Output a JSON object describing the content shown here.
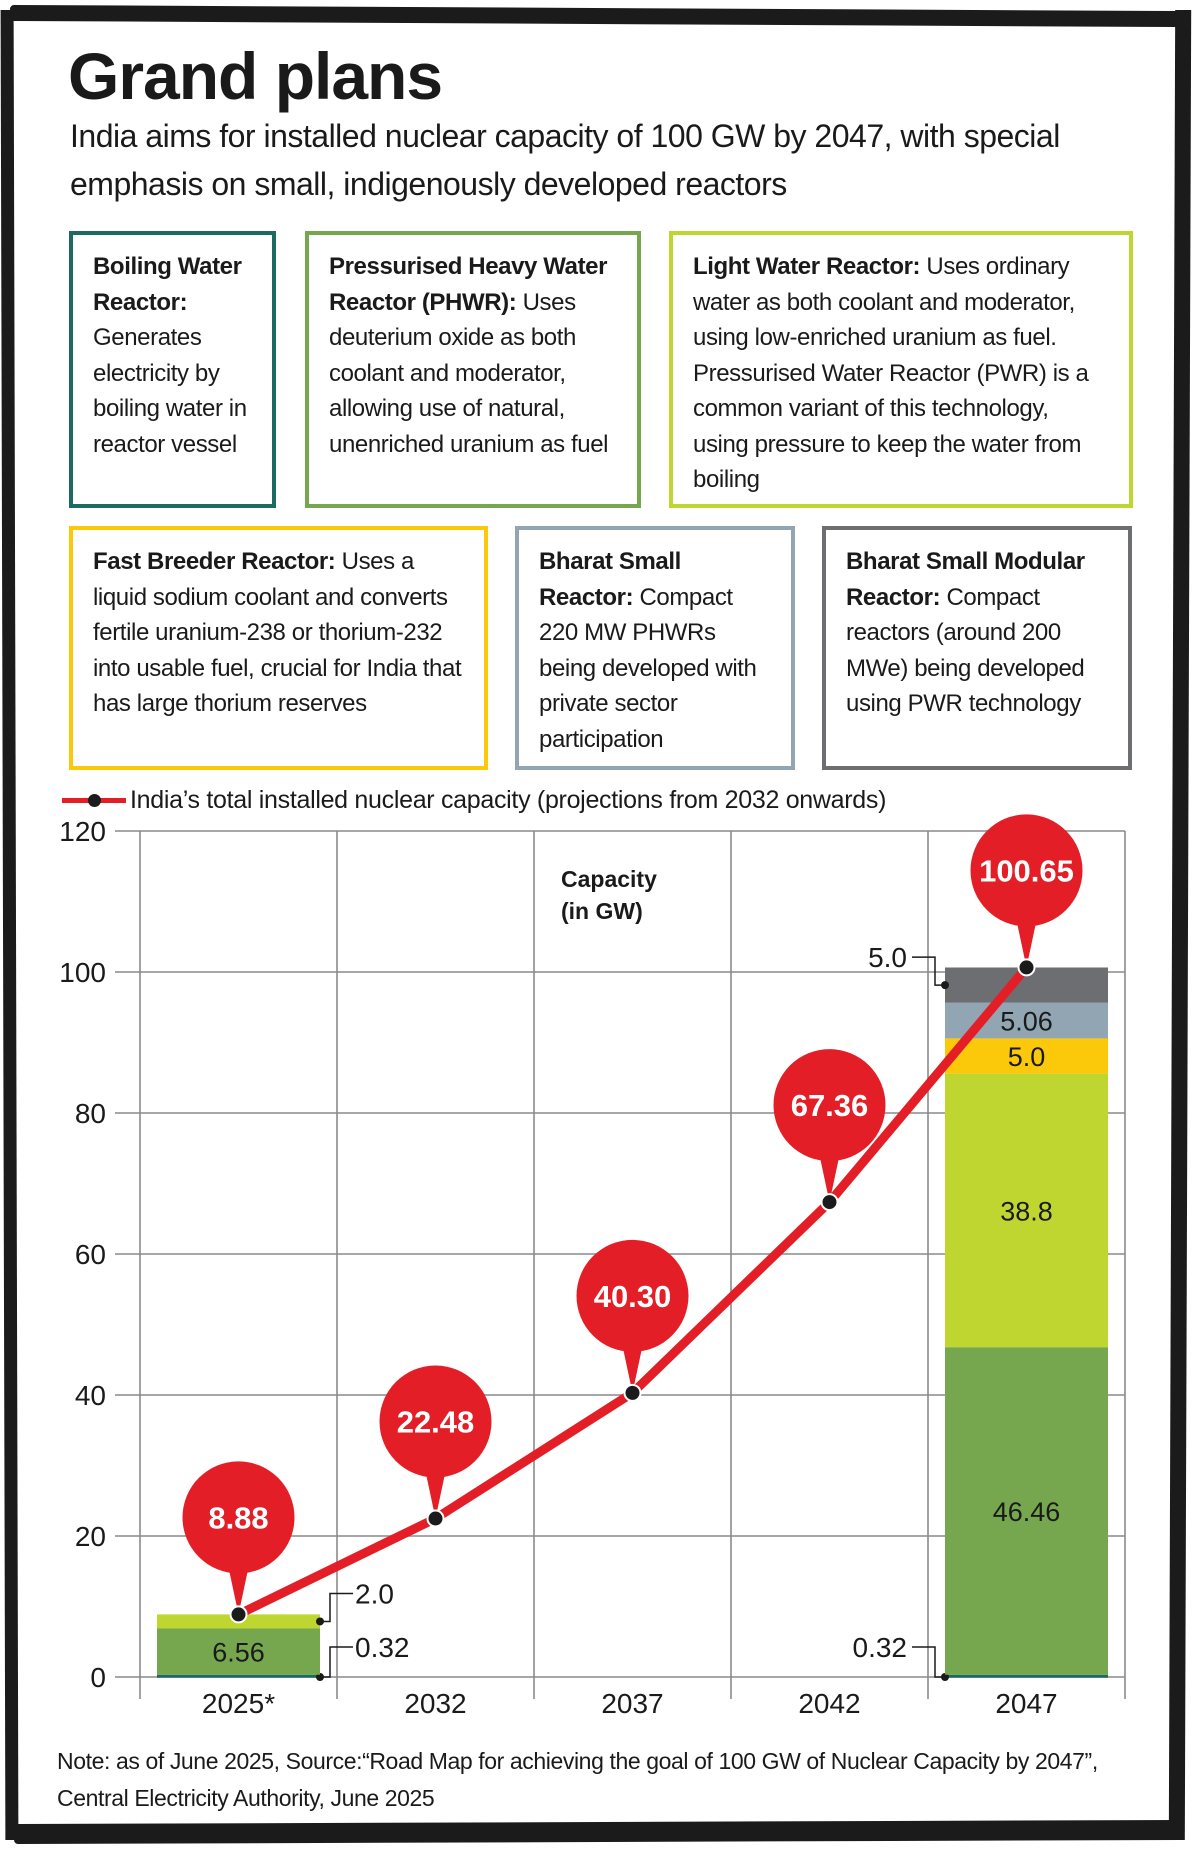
{
  "header": {
    "title": "Grand plans",
    "subtitle": "India aims for installed nuclear capacity of 100 GW by 2047, with special emphasis on small, indigenously developed reactors"
  },
  "reactor_types": [
    {
      "title": "Boiling Water Reactor:",
      "body": "Generates electricity by boiling water in reactor vessel",
      "color": "#1d6a62"
    },
    {
      "title": "Pressurised Heavy Water Reactor (PHWR):",
      "body": "Uses deuterium oxide as both coolant and moderator, allowing use of natural, unenriched uranium as fuel",
      "color": "#76a74f"
    },
    {
      "title": "Light Water Reactor:",
      "body": "Uses ordinary water as both coolant and moderator, using low-enriched uranium as fuel. Pressurised Water Reactor (PWR) is a common variant of this technology, using pressure to keep the water from boiling",
      "color": "#bfd630"
    },
    {
      "title": "Fast Breeder Reactor:",
      "body": "Uses a liquid sodium coolant and converts fertile uranium-238 or thorium-232 into usable fuel, crucial for India that has large thorium reserves",
      "color": "#fcc80a"
    },
    {
      "title": "Bharat Small Reactor:",
      "body": "Compact 220 MW PHWRs being developed with private sector participation",
      "color": "#91a5b2"
    },
    {
      "title": "Bharat Small Modular Reactor:",
      "body": "Compact reactors (around 200 MWe) being developed using PWR technology",
      "color": "#6d6e71"
    }
  ],
  "chart_data": {
    "type": "bar+line",
    "legend": "India’s total installed nuclear capacity (projections from 2032 onwards)",
    "ylabel_line1": "Capacity",
    "ylabel_line2": "(in GW)",
    "categories": [
      "2025*",
      "2032",
      "2037",
      "2042",
      "2047"
    ],
    "ylim": [
      0,
      120
    ],
    "yticks": [
      0,
      20,
      40,
      60,
      80,
      100,
      120
    ],
    "ytick_labels": [
      "0",
      "20",
      "40",
      "60",
      "80",
      "100",
      "120"
    ],
    "grid": true,
    "line": {
      "color": "#e31e26",
      "values": [
        8.88,
        22.48,
        40.3,
        67.36,
        100.65
      ],
      "labels": [
        "8.88",
        "22.48",
        "40.30",
        "67.36",
        "100.65"
      ]
    },
    "stacked_bars": [
      {
        "category": "2025*",
        "segments": [
          {
            "type": "Boiling Water Reactor",
            "value": 0.32,
            "label": "0.32",
            "color": "#1d6a62",
            "label_position": "outside"
          },
          {
            "type": "Pressurised Heavy Water Reactor",
            "value": 6.56,
            "label": "6.56",
            "color": "#76a74f",
            "label_position": "inside"
          },
          {
            "type": "Light Water Reactor",
            "value": 2.0,
            "label": "2.0",
            "color": "#bfd630",
            "label_position": "outside"
          }
        ]
      },
      {
        "category": "2047",
        "segments": [
          {
            "type": "Boiling Water Reactor",
            "value": 0.32,
            "label": "0.32",
            "color": "#1d6a62",
            "label_position": "outside"
          },
          {
            "type": "Pressurised Heavy Water Reactor",
            "value": 46.46,
            "label": "46.46",
            "color": "#76a74f",
            "label_position": "inside"
          },
          {
            "type": "Light Water Reactor",
            "value": 38.8,
            "label": "38.8",
            "color": "#bfd630",
            "label_position": "inside"
          },
          {
            "type": "Fast Breeder Reactor",
            "value": 5.0,
            "label": "5.0",
            "color": "#fcc80a",
            "label_position": "inside"
          },
          {
            "type": "Bharat Small Reactor",
            "value": 5.06,
            "label": "5.06",
            "color": "#91a5b2",
            "label_position": "inside"
          },
          {
            "type": "Bharat Small Modular Reactor",
            "value": 5.0,
            "label": "5.0",
            "color": "#6d6e71",
            "label_position": "outside"
          }
        ]
      }
    ]
  },
  "footer": {
    "note": "Note: as of June 2025, Source:“Road Map for achieving the goal of 100 GW of Nuclear Capacity by 2047”, Central Electricity Authority, June 2025"
  }
}
